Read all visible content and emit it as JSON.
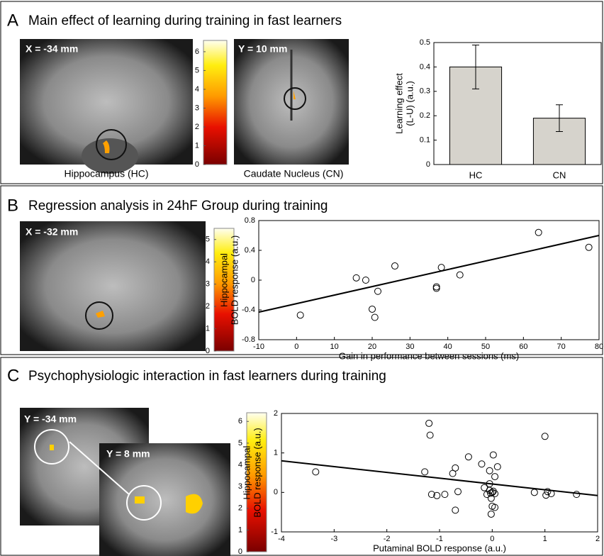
{
  "panels": [
    {
      "letter": "A",
      "title": "Main effect of learning during training in fast learners",
      "images": [
        {
          "label": "X = -34 mm",
          "caption": "Hippocampus (HC)"
        },
        {
          "label": "Y = 10 mm",
          "caption": "Caudate Nucleus (CN)"
        }
      ]
    },
    {
      "letter": "B",
      "title": "Regression analysis in 24hF Group during training",
      "images": [
        {
          "label": "X = -32 mm"
        }
      ]
    },
    {
      "letter": "C",
      "title": "Psychophysiologic interaction in fast learners during training",
      "images": [
        {
          "label": "Y = -34 mm"
        },
        {
          "label": "Y = 8 mm"
        }
      ]
    }
  ],
  "chart_data": [
    {
      "type": "colorbar",
      "ylim": [
        0,
        6.6
      ],
      "yticks": [
        0,
        1,
        2,
        3,
        4,
        5,
        6
      ]
    },
    {
      "type": "bar",
      "categories": [
        "HC",
        "CN"
      ],
      "values": [
        0.4,
        0.19
      ],
      "errors": [
        0.09,
        0.055
      ],
      "color": "#d6d3cc",
      "ylabel": [
        "Learning effect",
        "(L-U) (a.u.)"
      ],
      "ylim": [
        0,
        0.5
      ],
      "yticks": [
        0,
        0.1,
        0.2,
        0.3,
        0.4,
        0.5
      ]
    },
    {
      "type": "colorbar",
      "ylim": [
        0,
        5.5
      ],
      "yticks": [
        0,
        1,
        2,
        3,
        4,
        5
      ]
    },
    {
      "type": "scatter",
      "x": [
        1,
        15.8,
        18.3,
        20,
        20.7,
        21.5,
        26,
        37,
        37,
        38.3,
        43.2,
        64,
        77.3
      ],
      "values": [
        -0.47,
        0.03,
        0,
        -0.39,
        -0.5,
        -0.15,
        0.19,
        -0.09,
        -0.11,
        0.17,
        0.07,
        0.64,
        0.44
      ],
      "line": {
        "x": [
          -10,
          80
        ],
        "values": [
          -0.43,
          0.6
        ]
      },
      "color": "#000000",
      "xlabel": "Gain in performance between sessions (ms)",
      "ylabel": [
        "Hippocampal",
        "BOLD response  (a.u.)"
      ],
      "xlim": [
        -10,
        80
      ],
      "xticks": [
        -10,
        0,
        10,
        20,
        30,
        40,
        50,
        60,
        70,
        80
      ],
      "ylim": [
        -0.8,
        0.8
      ],
      "yticks": [
        -0.8,
        -0.4,
        0,
        0.4,
        0.8
      ]
    },
    {
      "type": "colorbar",
      "ylim": [
        0,
        6.4
      ],
      "yticks": [
        0,
        1,
        2,
        3,
        4,
        5,
        6
      ]
    },
    {
      "type": "scatter",
      "x": [
        -3.35,
        -1.2,
        -1.18,
        -1.28,
        -1.15,
        -1.05,
        -0.9,
        -0.75,
        -0.7,
        -0.7,
        -0.65,
        -0.45,
        -0.2,
        -0.15,
        -0.1,
        -0.05,
        -0.05,
        -0.05,
        -0.03,
        0,
        0.02,
        0.05,
        -0.02,
        0,
        -0.02,
        0.05,
        0.05,
        0.02,
        0.1,
        0.8,
        1.02,
        1.05,
        1,
        1.12,
        1.6
      ],
      "values": [
        0.52,
        1.75,
        1.45,
        0.52,
        -0.05,
        -0.08,
        -0.05,
        0.48,
        0.62,
        -0.45,
        0.02,
        0.9,
        0.72,
        0.12,
        -0.05,
        0.55,
        0.22,
        0.05,
        -0.02,
        0,
        0.03,
        -0.03,
        -0.15,
        -0.35,
        -0.55,
        -0.38,
        0.4,
        0.95,
        0.65,
        0,
        -0.07,
        0.02,
        1.42,
        -0.03,
        -0.05
      ],
      "line": {
        "x": [
          -4,
          2
        ],
        "values": [
          0.8,
          -0.08
        ]
      },
      "color": "#000000",
      "xlabel": "Putaminal BOLD response (a.u.)",
      "ylabel": [
        "Hippocampal",
        "BOLD response (a.u.)"
      ],
      "xlim": [
        -4,
        2
      ],
      "xticks": [
        -4,
        -3,
        -2,
        -1,
        0,
        1,
        2
      ],
      "ylim": [
        -1,
        2
      ],
      "yticks": [
        -1,
        0,
        1,
        2
      ]
    }
  ]
}
